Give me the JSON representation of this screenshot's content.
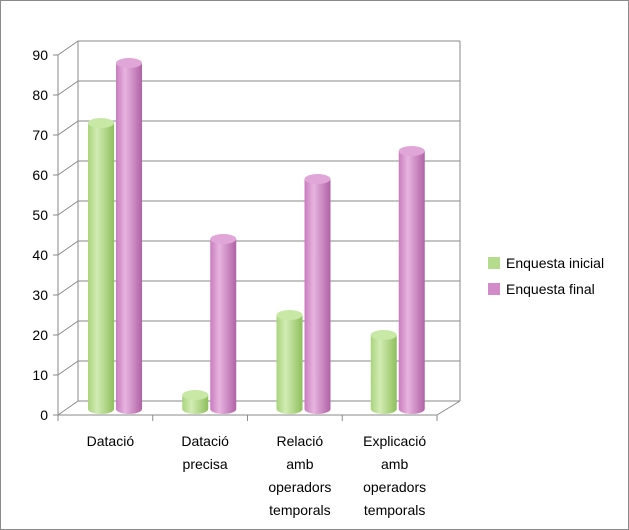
{
  "chart_data": {
    "type": "bar",
    "categories": [
      [
        "Datació"
      ],
      [
        "Datació",
        "precisa"
      ],
      [
        "Relació",
        "amb",
        "operadors",
        "temporals"
      ],
      [
        "Explicació",
        "amb",
        "operadors",
        "temporals"
      ]
    ],
    "series": [
      {
        "name": "Enquesta inicial",
        "values": [
          72,
          4,
          24,
          19
        ],
        "color": "#b5dc8c"
      },
      {
        "name": "Enquesta final",
        "values": [
          87,
          43,
          58,
          65
        ],
        "color": "#d38ac8"
      }
    ],
    "yticks": [
      0,
      10,
      20,
      30,
      40,
      50,
      60,
      70,
      80,
      90
    ],
    "ylim": [
      0,
      90
    ],
    "grid": true,
    "style": "3d-cylinder",
    "legend_position": "right"
  }
}
